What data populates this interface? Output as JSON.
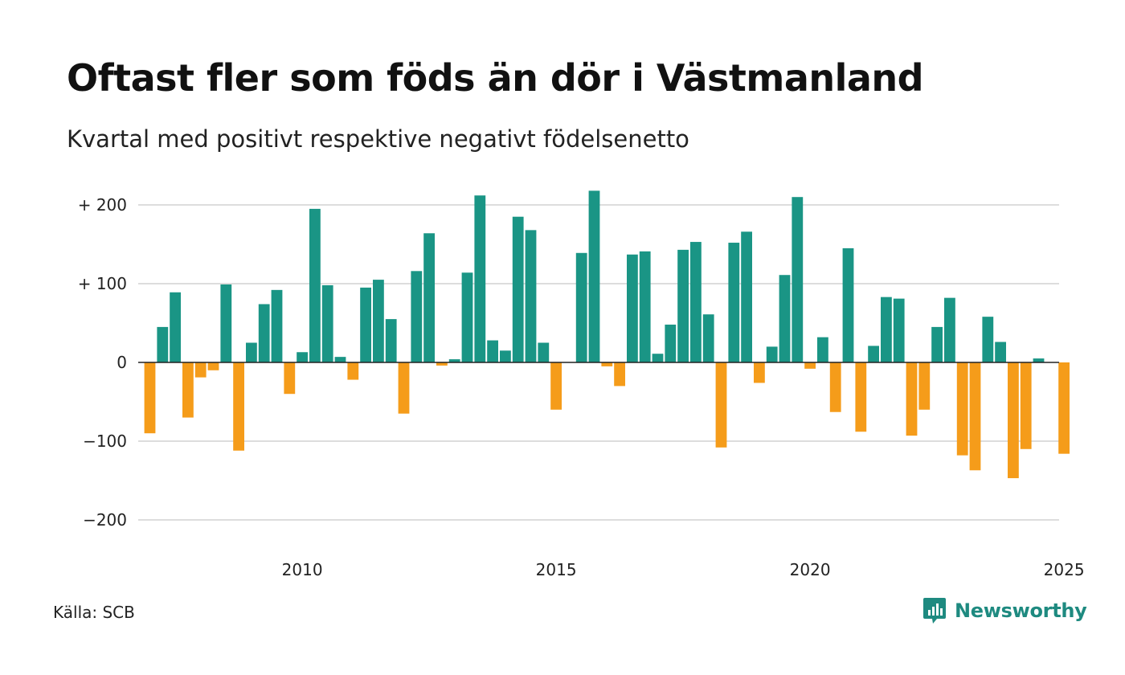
{
  "title": "Oftast fler som föds än dör i Västmanland",
  "subtitle": "Kvartal med positivt respektive negativt födelsenetto",
  "source": "Källa: SCB",
  "brand": "Newsworthy",
  "colors": {
    "positive": "#1a9585",
    "negative": "#f59c1a",
    "grid": "#dddddd",
    "brand": "#1e8a80"
  },
  "chart_data": {
    "type": "bar",
    "x_start": "2007 Q1",
    "y_tick_labels": [
      "+ 200",
      "+ 100",
      "0",
      "−100",
      "−200"
    ],
    "y_ticks": [
      200,
      100,
      0,
      -100,
      -200
    ],
    "x_tick_labels": [
      "2010",
      "2015",
      "2020",
      "2025"
    ],
    "x_ticks": [
      2010,
      2015,
      2020,
      2025
    ],
    "ylim": [
      -225,
      225
    ],
    "values": [
      -90,
      45,
      89,
      -70,
      -19,
      -10,
      99,
      -112,
      25,
      74,
      92,
      -40,
      13,
      195,
      98,
      7,
      -22,
      95,
      105,
      55,
      -65,
      116,
      164,
      -4,
      4,
      114,
      212,
      28,
      15,
      185,
      168,
      25,
      -60,
      0,
      139,
      218,
      -5,
      -30,
      137,
      141,
      11,
      48,
      143,
      153,
      61,
      -108,
      152,
      166,
      -26,
      20,
      111,
      210,
      -8,
      32,
      -63,
      145,
      -88,
      21,
      83,
      81,
      -93,
      -60,
      45,
      82,
      -118,
      -137,
      58,
      26,
      -147,
      -110,
      5,
      0,
      -116
    ]
  }
}
